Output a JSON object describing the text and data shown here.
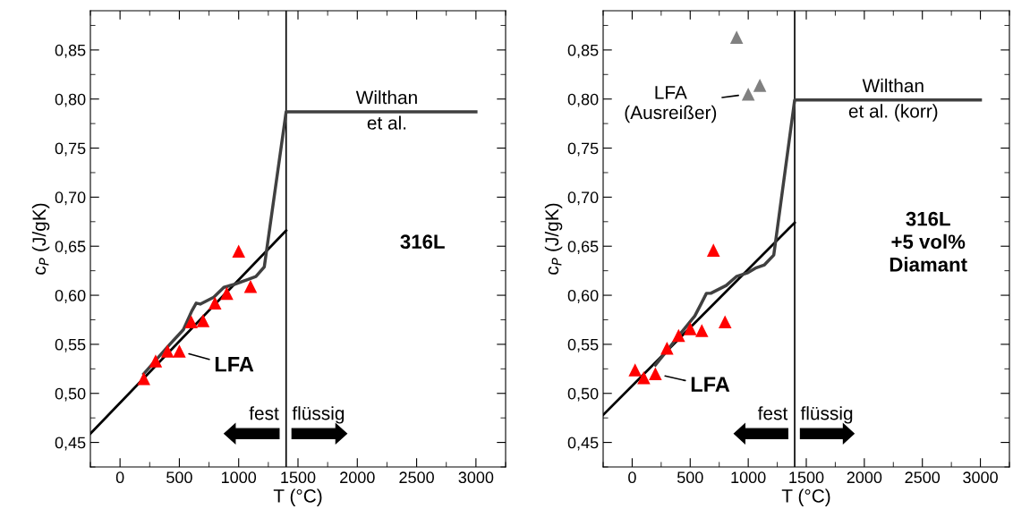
{
  "chart_data": [
    {
      "type": "scatter",
      "xlabel": "T (°C)",
      "ylabel": "c$_{P}$ (J/gK)",
      "marker": "triangle",
      "grid": false,
      "legend": false,
      "xlim": [
        -250,
        3250
      ],
      "ylim": [
        0.425,
        0.89
      ],
      "xticks": [
        0,
        500,
        1000,
        1500,
        2000,
        2500,
        3000
      ],
      "yticks": [
        {
          "value": 0.45,
          "label": "0,45"
        },
        {
          "value": 0.5,
          "label": "0,50"
        },
        {
          "value": 0.55,
          "label": "0,55"
        },
        {
          "value": 0.6,
          "label": "0,60"
        },
        {
          "value": 0.65,
          "label": "0,65"
        },
        {
          "value": 0.7,
          "label": "0,70"
        },
        {
          "value": 0.75,
          "label": "0,75"
        },
        {
          "value": 0.8,
          "label": "0,80"
        },
        {
          "value": 0.85,
          "label": "0,85"
        }
      ],
      "ref_lines": [
        {
          "axis": "x",
          "value": 1400,
          "color": "#000000"
        }
      ],
      "series": [
        {
          "type": "line",
          "color": "#000000",
          "marker": "none",
          "x": [
            -250,
            1400
          ],
          "values": [
            0.459,
            0.666
          ]
        },
        {
          "type": "line",
          "color": "#404040",
          "marker": "none",
          "x": [
            200,
            420,
            534,
            605,
            642,
            676,
            790,
            875,
            960,
            1074,
            1145,
            1216,
            1400,
            3000
          ],
          "values": [
            0.52,
            0.55,
            0.565,
            0.584,
            0.592,
            0.591,
            0.598,
            0.608,
            0.611,
            0.616,
            0.619,
            0.629,
            0.787,
            0.787
          ]
        },
        {
          "color": "#ff0000",
          "x": [
            200,
            300,
            400,
            500,
            600,
            700,
            800,
            900,
            1000,
            1100
          ],
          "values": [
            0.515,
            0.533,
            0.543,
            0.543,
            0.573,
            0.574,
            0.592,
            0.602,
            0.645,
            0.609
          ]
        }
      ],
      "annotations": [
        {
          "text": "Wilthan\net al.",
          "x": 2250,
          "y": 0.787
        },
        {
          "text": "LFA",
          "x": 500,
          "y": 0.543
        },
        "316L",
        "fest",
        "flüssig"
      ]
    },
    {
      "type": "scatter",
      "xlabel": "T (°C)",
      "ylabel": "c$_{P}$ (J/gK)",
      "marker": "triangle",
      "grid": false,
      "legend": false,
      "xlim": [
        -250,
        3250
      ],
      "ylim": [
        0.425,
        0.89
      ],
      "xticks": [
        0,
        500,
        1000,
        1500,
        2000,
        2500,
        3000
      ],
      "yticks": [
        {
          "value": 0.45,
          "label": "0,45"
        },
        {
          "value": 0.5,
          "label": "0,50"
        },
        {
          "value": 0.55,
          "label": "0,55"
        },
        {
          "value": 0.6,
          "label": "0,60"
        },
        {
          "value": 0.65,
          "label": "0,65"
        },
        {
          "value": 0.7,
          "label": "0,70"
        },
        {
          "value": 0.75,
          "label": "0,75"
        },
        {
          "value": 0.8,
          "label": "0,80"
        },
        {
          "value": 0.85,
          "label": "0,85"
        }
      ],
      "ref_lines": [
        {
          "axis": "x",
          "value": 1400,
          "color": "#000000"
        }
      ],
      "series": [
        {
          "type": "line",
          "color": "#000000",
          "marker": "none",
          "x": [
            -250,
            1400
          ],
          "values": [
            0.478,
            0.674
          ]
        },
        {
          "type": "line",
          "color": "#404040",
          "marker": "none",
          "x": [
            200,
            310,
            410,
            540,
            597,
            640,
            677,
            810,
            897,
            997,
            1069,
            1140,
            1220,
            1400,
            3000
          ],
          "values": [
            0.529,
            0.545,
            0.56,
            0.579,
            0.592,
            0.602,
            0.602,
            0.61,
            0.619,
            0.623,
            0.628,
            0.631,
            0.641,
            0.799,
            0.799
          ]
        },
        {
          "color": "#ff0000",
          "x": [
            25,
            100,
            200,
            300,
            400,
            500,
            600,
            700,
            800
          ],
          "values": [
            0.524,
            0.516,
            0.52,
            0.546,
            0.559,
            0.566,
            0.564,
            0.646,
            0.573
          ]
        },
        {
          "color": "#808080",
          "x": [
            900,
            1000,
            1100
          ],
          "values": [
            0.863,
            0.805,
            0.814
          ]
        }
      ],
      "annotations": [
        {
          "text": "Wilthan\net al. (korr)",
          "x": 2250,
          "y": 0.799
        },
        {
          "text": "LFA",
          "x": 200,
          "y": 0.52
        },
        {
          "text": "LFA\n(Ausreißer)",
          "x": 1000,
          "y": 0.805
        },
        "316L\n+5 vol%\nDiamant",
        "fest",
        "flüssig"
      ]
    }
  ]
}
